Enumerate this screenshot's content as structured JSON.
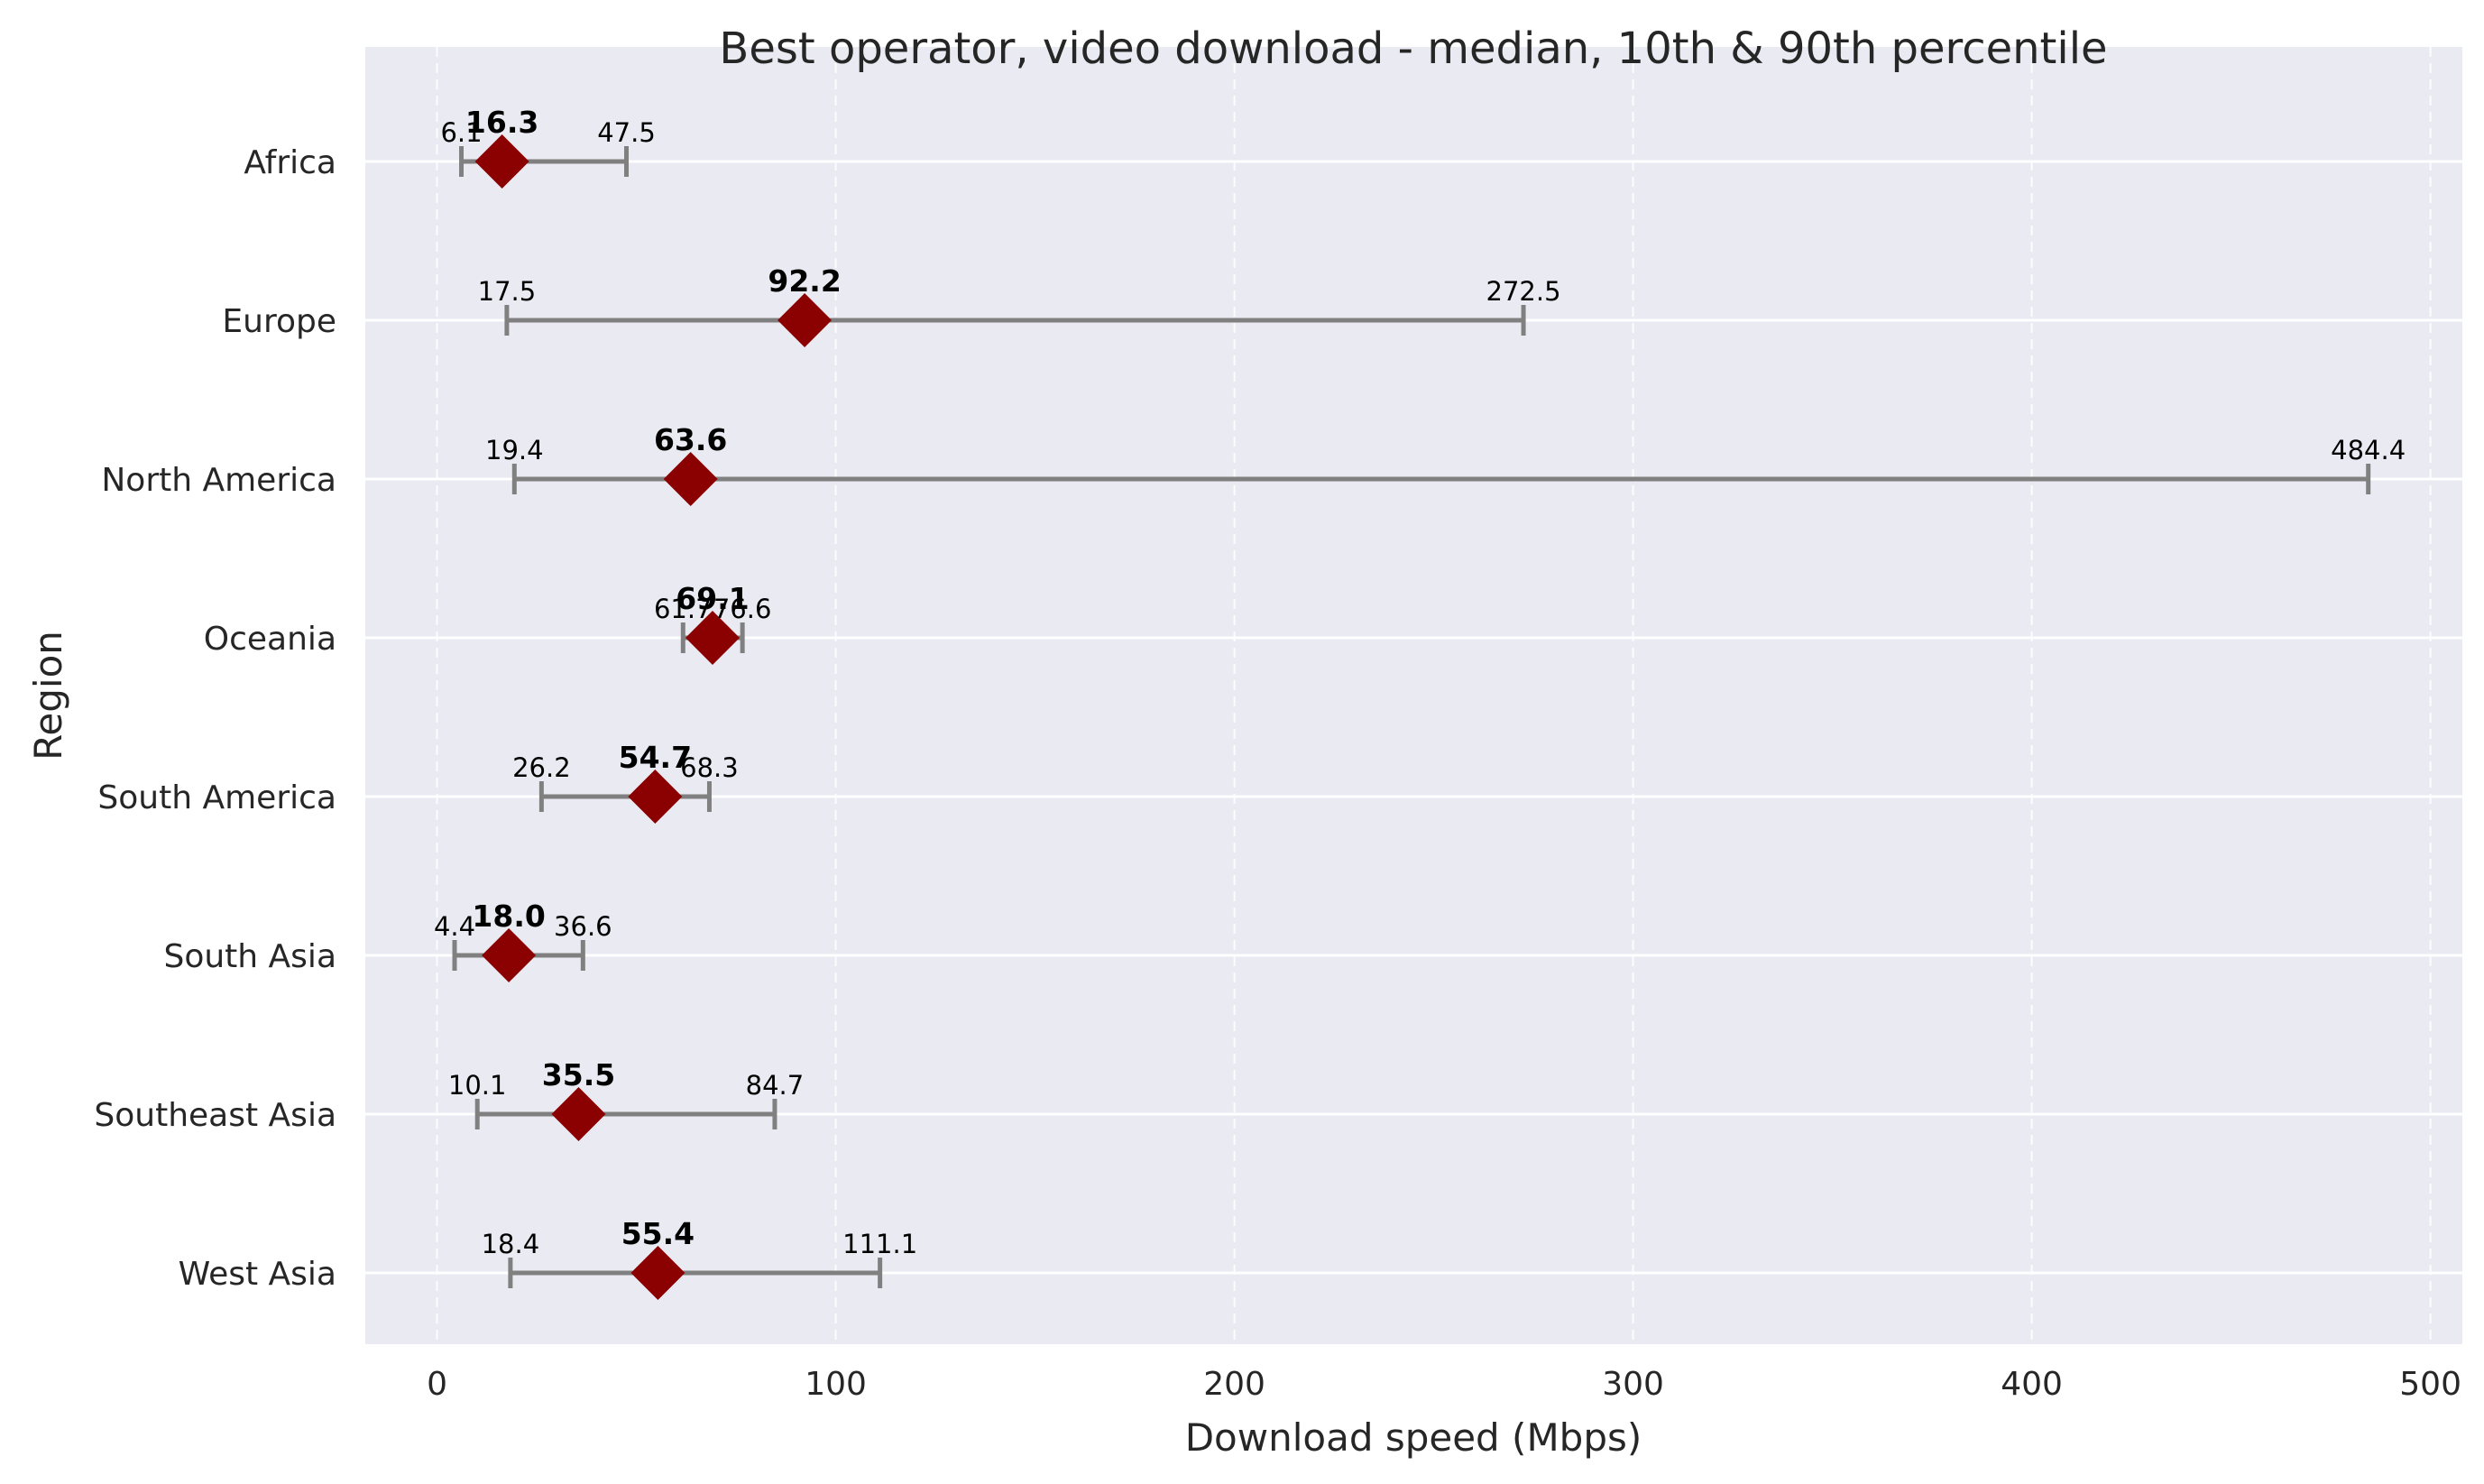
{
  "chart_data": {
    "type": "range",
    "title": "Best operator, video download - median, 10th & 90th percentile",
    "xlabel": "Download speed (Mbps)",
    "ylabel": "Region",
    "xlim": [
      -18,
      508
    ],
    "xticks": [
      0,
      100,
      200,
      300,
      400,
      500
    ],
    "grid": true,
    "categories": [
      "Africa",
      "Europe",
      "North America",
      "Oceania",
      "South America",
      "South Asia",
      "Southeast Asia",
      "West Asia"
    ],
    "series": [
      {
        "name": "10th percentile",
        "values": [
          6.1,
          17.5,
          19.4,
          61.7,
          26.2,
          4.4,
          10.1,
          18.4
        ]
      },
      {
        "name": "median",
        "values": [
          16.3,
          92.2,
          63.6,
          69.1,
          54.7,
          18.0,
          35.5,
          55.4
        ]
      },
      {
        "name": "90th percentile",
        "values": [
          47.5,
          272.5,
          484.4,
          76.6,
          68.3,
          36.6,
          84.7,
          111.1
        ]
      }
    ],
    "colors": {
      "background": "#eaeaf2",
      "range_line": "#808080",
      "median_marker": "#8b0000",
      "grid": "#ffffff"
    }
  }
}
